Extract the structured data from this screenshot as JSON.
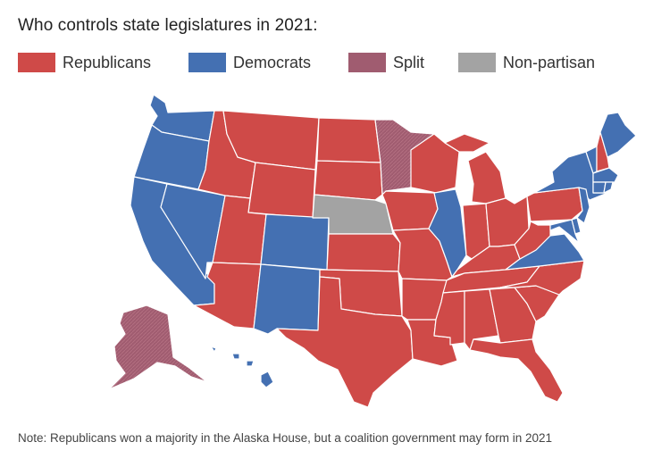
{
  "title": "Who controls state legislatures in 2021:",
  "legend": [
    {
      "label": "Republicans",
      "color": "#cf4a48"
    },
    {
      "label": "Democrats",
      "color": "#4470b2"
    },
    {
      "label": "Split",
      "color": "#a05c70"
    },
    {
      "label": "Non-partisan",
      "color": "#a3a3a3"
    }
  ],
  "colors": {
    "R": "#cf4a48",
    "D": "#4470b2",
    "S": "#a05c70",
    "N": "#a3a3a3"
  },
  "control": {
    "WA": "D",
    "OR": "D",
    "CA": "D",
    "NV": "D",
    "ID": "R",
    "MT": "R",
    "WY": "R",
    "UT": "R",
    "AZ": "R",
    "CO": "D",
    "NM": "D",
    "ND": "R",
    "SD": "R",
    "NE": "N",
    "KS": "R",
    "OK": "R",
    "TX": "R",
    "MN": "S",
    "IA": "R",
    "MO": "R",
    "AR": "R",
    "LA": "R",
    "WI": "R",
    "IL": "D",
    "MI": "R",
    "IN": "R",
    "OH": "R",
    "KY": "R",
    "TN": "R",
    "MS": "R",
    "AL": "R",
    "GA": "R",
    "FL": "R",
    "SC": "R",
    "NC": "R",
    "VA": "D",
    "WV": "R",
    "PA": "R",
    "NY": "D",
    "VT": "D",
    "NH": "R",
    "ME": "D",
    "MA": "D",
    "RI": "D",
    "CT": "D",
    "NJ": "D",
    "DE": "D",
    "MD": "D",
    "AK": "S",
    "HI": "D"
  },
  "note": "Note: Republicans won a majority in the Alaska House, but a coalition government may form in 2021"
}
